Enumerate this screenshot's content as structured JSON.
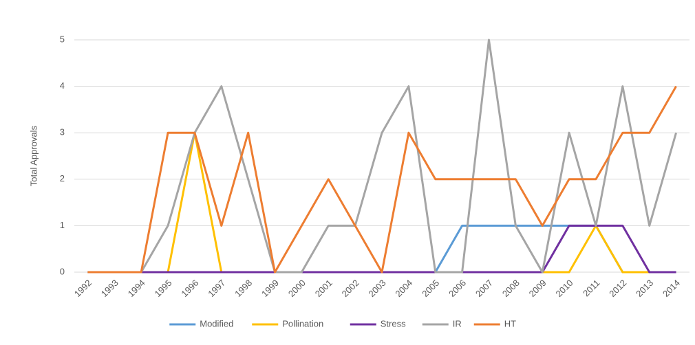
{
  "chart_data": {
    "type": "line",
    "y_label": "Total Approvals",
    "categories": [
      "1992",
      "1993",
      "1994",
      "1995",
      "1996",
      "1997",
      "1998",
      "1999",
      "2000",
      "2001",
      "2002",
      "2003",
      "2004",
      "2005",
      "2006",
      "2007",
      "2008",
      "2009",
      "2010",
      "2011",
      "2012",
      "2013",
      "2014"
    ],
    "series": [
      {
        "name": "Modified",
        "color": "#5b9bd5",
        "values": [
          0,
          0,
          0,
          0,
          0,
          0,
          0,
          0,
          0,
          0,
          0,
          0,
          0,
          0,
          1,
          1,
          1,
          1,
          1,
          1,
          0,
          0,
          0
        ]
      },
      {
        "name": "Pollination",
        "color": "#ffc000",
        "values": [
          0,
          0,
          0,
          0,
          3,
          0,
          0,
          0,
          0,
          0,
          0,
          0,
          0,
          0,
          0,
          0,
          0,
          0,
          0,
          1,
          0,
          0,
          0
        ]
      },
      {
        "name": "Stress",
        "color": "#7030a0",
        "values": [
          0,
          0,
          0,
          0,
          0,
          0,
          0,
          0,
          0,
          0,
          0,
          0,
          0,
          0,
          0,
          0,
          0,
          0,
          1,
          1,
          1,
          0,
          0
        ]
      },
      {
        "name": "IR",
        "color": "#a5a5a5",
        "values": [
          0,
          0,
          0,
          1,
          3,
          4,
          2,
          0,
          0,
          1,
          1,
          3,
          4,
          0,
          0,
          5,
          1,
          0,
          3,
          1,
          4,
          1,
          3
        ]
      },
      {
        "name": "HT",
        "color": "#ed7d31",
        "values": [
          0,
          0,
          0,
          3,
          3,
          1,
          3,
          0,
          1,
          2,
          1,
          0,
          3,
          2,
          2,
          2,
          2,
          1,
          2,
          2,
          3,
          3,
          4
        ]
      }
    ],
    "ylim": [
      0,
      5
    ],
    "yticks": [
      0,
      1,
      2,
      3,
      4,
      5
    ],
    "grid": true,
    "legend": "bottom"
  }
}
